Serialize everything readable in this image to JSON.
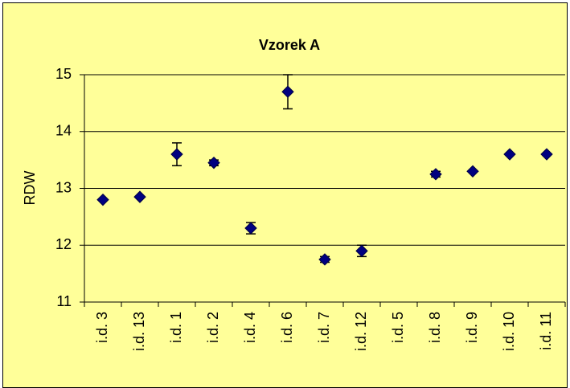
{
  "chart_data": {
    "type": "scatter",
    "title": "Vzorek A",
    "y_label": "RDW",
    "categories": [
      "i.d. 3",
      "i.d. 13",
      "i.d. 1",
      "i.d. 2",
      "i.d. 4",
      "i.d. 6",
      "i.d. 7",
      "i.d. 12",
      "i.d. 5",
      "i.d. 8",
      "i.d. 9",
      "i.d. 10",
      "i.d. 11"
    ],
    "series": [
      {
        "color": "#000080",
        "values": [
          12.8,
          12.85,
          13.6,
          13.45,
          12.3,
          14.7,
          11.75,
          11.9,
          null,
          13.25,
          13.3,
          13.6,
          13.6
        ],
        "errors": [
          0,
          0,
          0.2,
          0.05,
          0.1,
          0.3,
          0.05,
          0.1,
          null,
          0.05,
          0,
          0,
          0
        ]
      }
    ],
    "ylim": [
      11,
      15
    ],
    "yticks": [
      11,
      12,
      13,
      14,
      15
    ],
    "grid": true
  }
}
